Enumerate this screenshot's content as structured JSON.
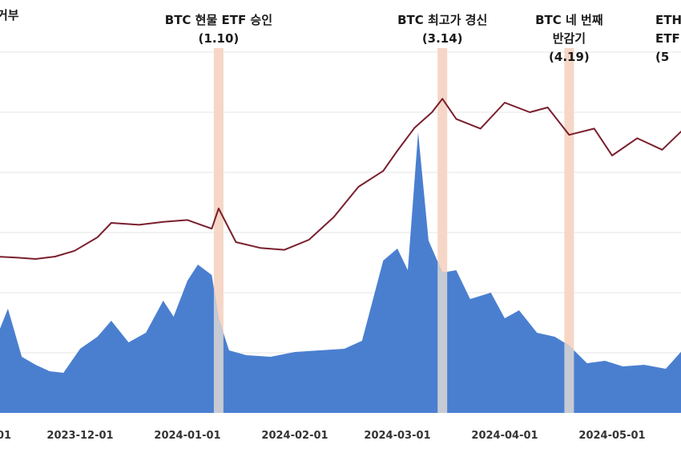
{
  "chart_data": {
    "type": "area",
    "title_fragment": "거부",
    "x_ticks": [
      "01",
      "2023-12-01",
      "2024-01-01",
      "2024-02-01",
      "2024-03-01",
      "2024-04-01",
      "2024-05-01"
    ],
    "annotations": [
      {
        "lines": [
          "BTC 현물 ETF 승인",
          "(1.10)"
        ],
        "date": "2024-01-10"
      },
      {
        "lines": [
          "BTC 최고가 경신",
          "(3.14)"
        ],
        "date": "2024-03-14"
      },
      {
        "lines": [
          "BTC 네 번째",
          "반감기",
          "(4.19)"
        ],
        "date": "2024-04-19"
      },
      {
        "lines": [
          "ETH",
          "ETF",
          "(5"
        ],
        "date": "2024-05-23"
      }
    ],
    "grid": true,
    "colors": {
      "area": "#4a7fd0",
      "line": "#7a1f2e",
      "highlight": "#f6d6c6",
      "area_highlighted": "#c6cad3"
    },
    "series": [
      {
        "kind": "line",
        "x": [
          "2023-11-01",
          "2023-11-08",
          "2023-11-15",
          "2023-11-22",
          "2023-11-29",
          "2023-12-06",
          "2023-12-10",
          "2023-12-18",
          "2023-12-25",
          "2024-01-01",
          "2024-01-08",
          "2024-01-10",
          "2024-01-15",
          "2024-01-22",
          "2024-01-29",
          "2024-02-05",
          "2024-02-12",
          "2024-02-19",
          "2024-02-26",
          "2024-03-01",
          "2024-03-06",
          "2024-03-11",
          "2024-03-14",
          "2024-03-18",
          "2024-03-25",
          "2024-04-01",
          "2024-04-08",
          "2024-04-13",
          "2024-04-19",
          "2024-04-26",
          "2024-05-01",
          "2024-05-08",
          "2024-05-15",
          "2024-05-20",
          "2024-05-25"
        ],
        "values": [
          300,
          298,
          295,
          300,
          312,
          340,
          370,
          366,
          372,
          376,
          358,
          400,
          330,
          318,
          314,
          335,
          382,
          445,
          478,
          520,
          568,
          600,
          628,
          586,
          566,
          620,
          600,
          610,
          553,
          566,
          510,
          546,
          522,
          558,
          590
        ]
      },
      {
        "kind": "area",
        "x": [
          "2023-11-01",
          "2023-11-05",
          "2023-11-10",
          "2023-11-15",
          "2023-11-20",
          "2023-11-25",
          "2023-12-01",
          "2023-12-06",
          "2023-12-10",
          "2023-12-15",
          "2023-12-20",
          "2023-12-25",
          "2023-12-28",
          "2024-01-01",
          "2024-01-04",
          "2024-01-08",
          "2024-01-10",
          "2024-01-13",
          "2024-01-18",
          "2024-01-25",
          "2024-02-01",
          "2024-02-08",
          "2024-02-15",
          "2024-02-20",
          "2024-02-26",
          "2024-03-01",
          "2024-03-04",
          "2024-03-07",
          "2024-03-10",
          "2024-03-14",
          "2024-03-18",
          "2024-03-22",
          "2024-03-28",
          "2024-04-01",
          "2024-04-05",
          "2024-04-10",
          "2024-04-15",
          "2024-04-19",
          "2024-04-24",
          "2024-04-29",
          "2024-05-04",
          "2024-05-10",
          "2024-05-16",
          "2024-05-22"
        ],
        "values": [
          95,
          130,
          70,
          60,
          52,
          50,
          80,
          95,
          115,
          88,
          100,
          140,
          120,
          165,
          185,
          172,
          118,
          78,
          72,
          70,
          76,
          78,
          80,
          90,
          190,
          205,
          178,
          350,
          215,
          175,
          178,
          142,
          150,
          118,
          128,
          100,
          95,
          84,
          62,
          65,
          58,
          60,
          55,
          85
        ]
      }
    ]
  }
}
